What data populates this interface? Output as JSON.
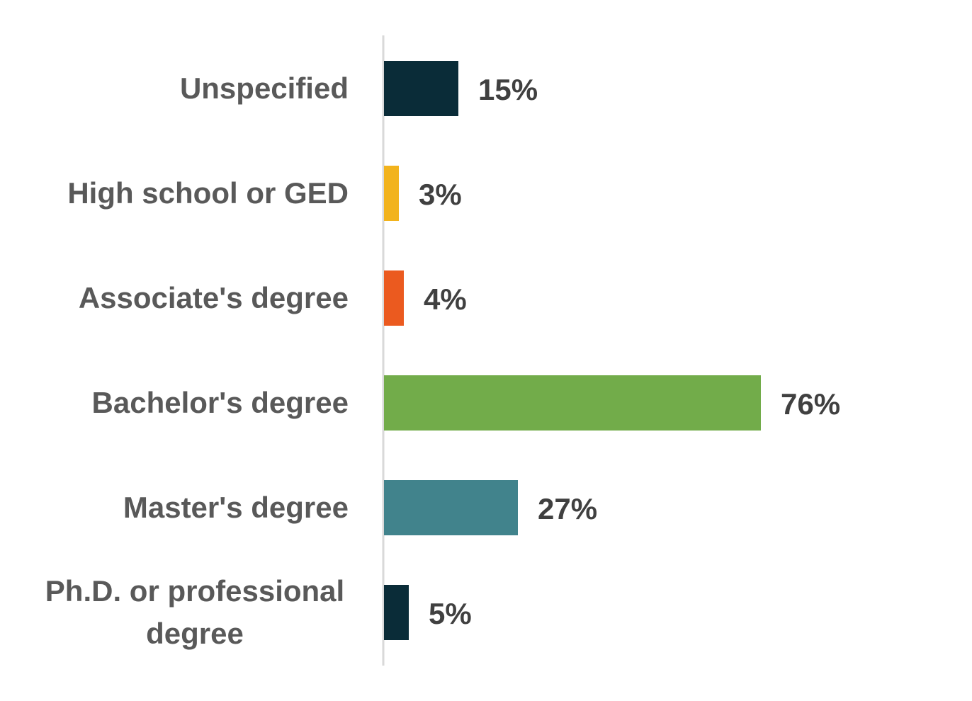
{
  "chart_data": {
    "type": "bar",
    "orientation": "horizontal",
    "categories": [
      "Unspecified",
      "High school or GED",
      "Associate's degree",
      "Bachelor's degree",
      "Master's degree",
      "Ph.D. or professional degree"
    ],
    "category_lines": [
      [
        "Unspecified"
      ],
      [
        "High school or GED"
      ],
      [
        "Associate's degree"
      ],
      [
        "Bachelor's degree"
      ],
      [
        "Master's degree"
      ],
      [
        "Ph.D. or professional",
        "degree"
      ]
    ],
    "values": [
      15,
      3,
      4,
      76,
      27,
      5
    ],
    "value_labels": [
      "15%",
      "3%",
      "4%",
      "76%",
      "27%",
      "5%"
    ],
    "unit": "%",
    "colors": [
      "#0a2c38",
      "#f2b31d",
      "#eb5a1f",
      "#72ac4a",
      "#41838c",
      "#0a2c38"
    ],
    "axis_color": "#d9d9d9",
    "xlim": [
      0,
      100
    ],
    "grid": false,
    "legend": "none"
  }
}
